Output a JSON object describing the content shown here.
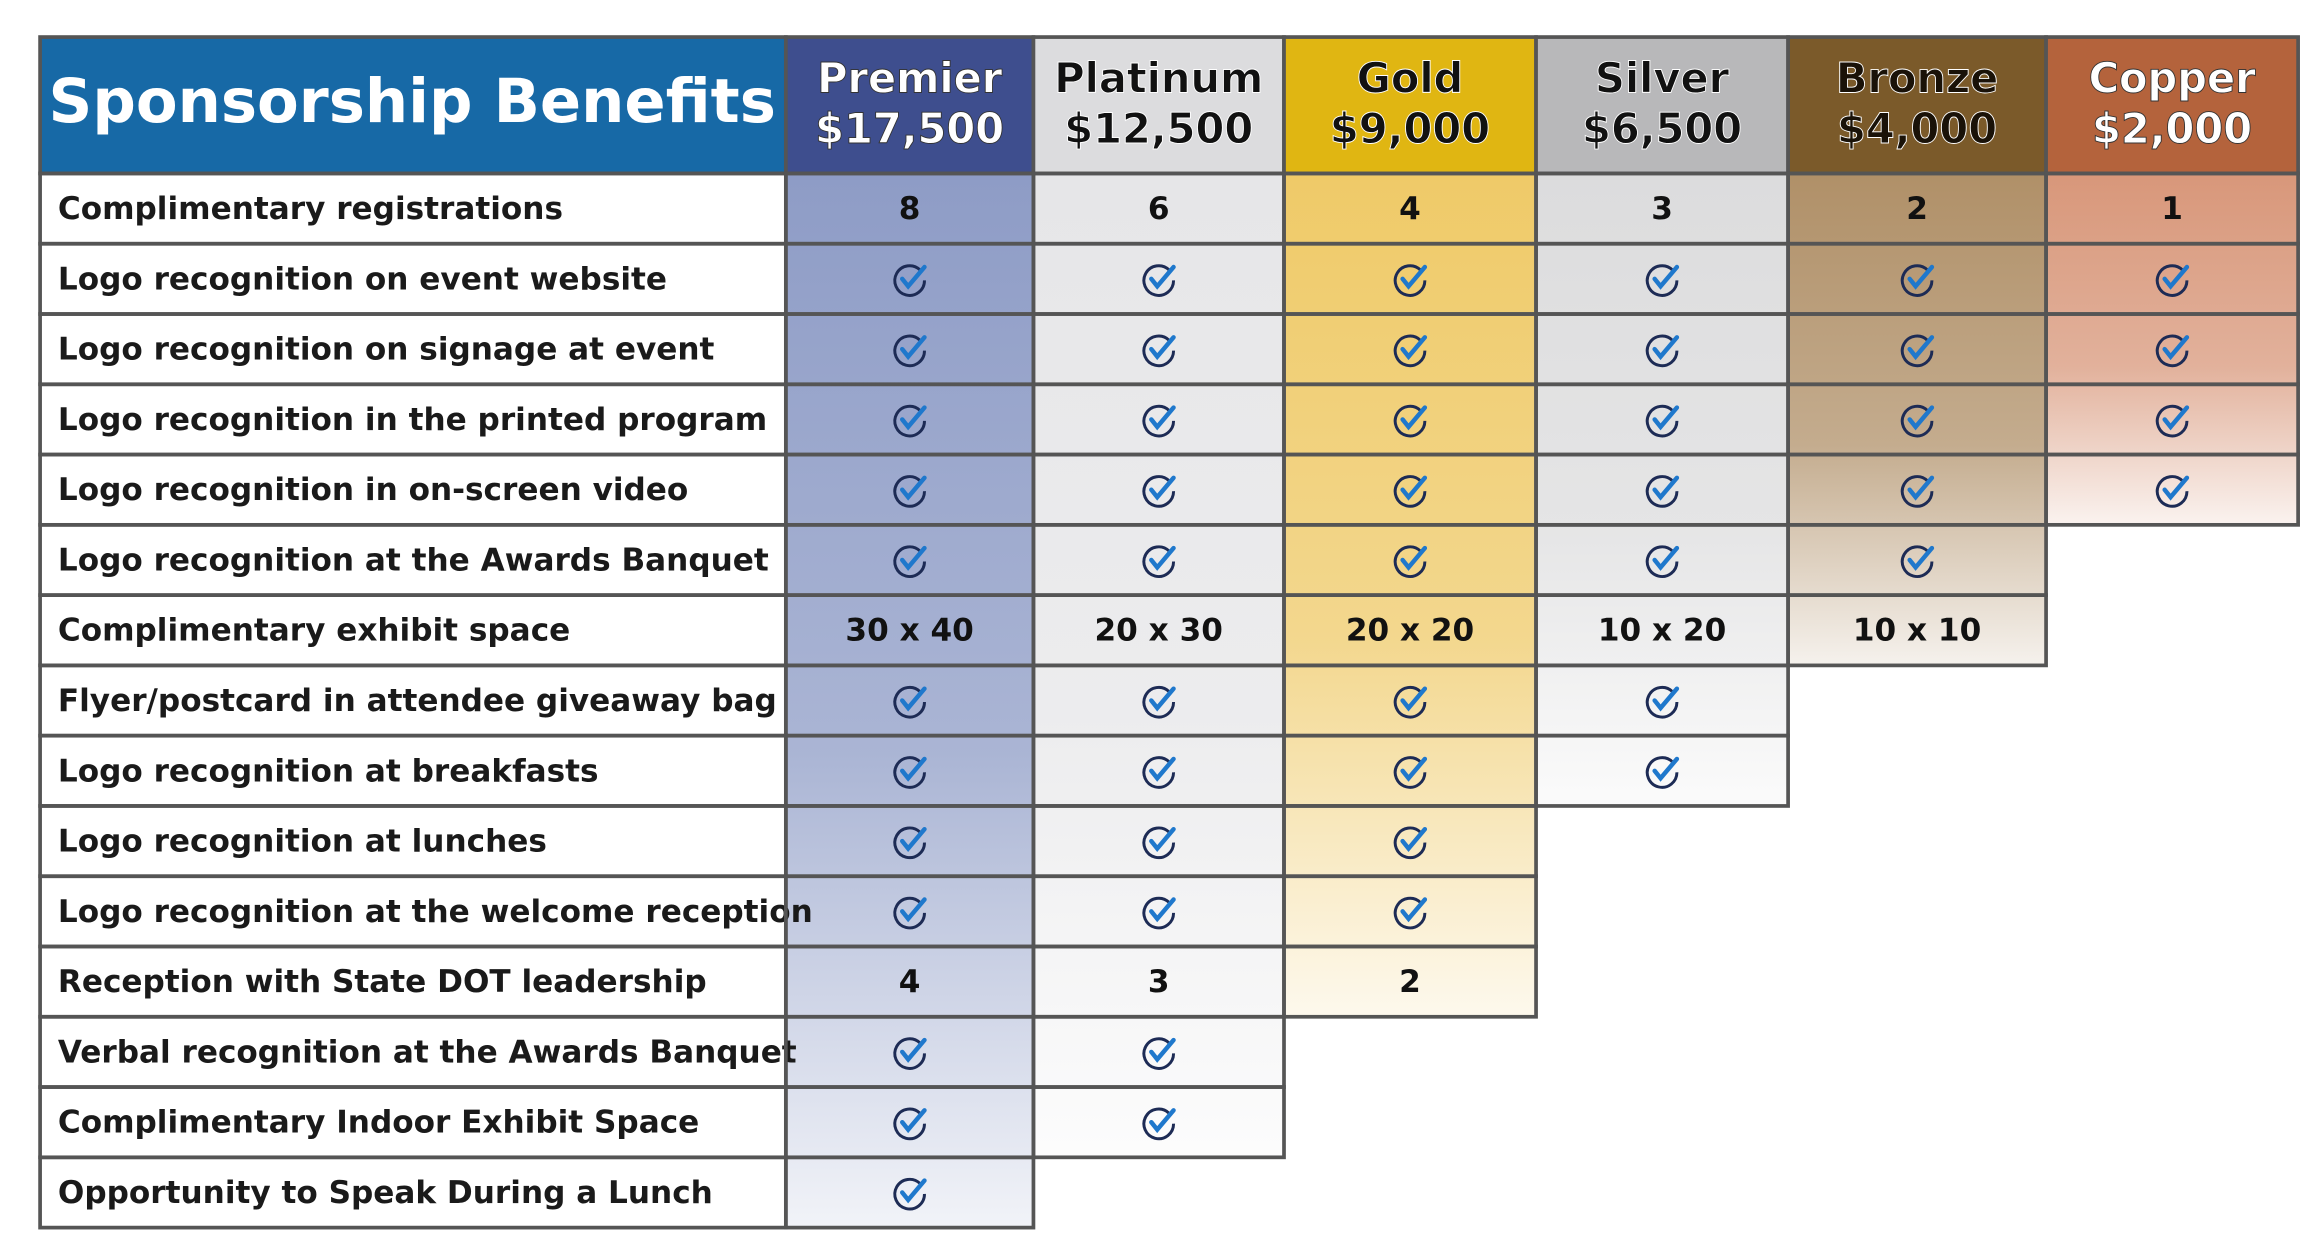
{
  "header": {
    "title": "Sponsorship Benefits"
  },
  "tiers": [
    {
      "name": "Premier",
      "price": "$17,500",
      "color": "#3e4e8e",
      "body_color": "#8e9cc6",
      "text_color": "#ffffff"
    },
    {
      "name": "Platinum",
      "price": "$12,500",
      "color": "#dcdcde",
      "body_color": "#e6e6e8",
      "text_color": "#111111"
    },
    {
      "name": "Gold",
      "price": "$9,000",
      "color": "#e0b612",
      "body_color": "#efca68",
      "text_color": "#111111"
    },
    {
      "name": "Silver",
      "price": "$6,500",
      "color": "#b8b8ba",
      "body_color": "#dcdcdd",
      "text_color": "#111111"
    },
    {
      "name": "Bronze",
      "price": "$4,000",
      "color": "#7b5a2a",
      "body_color": "#b09068",
      "text_color": "#1a1208"
    },
    {
      "name": "Copper",
      "price": "$2,000",
      "color": "#b4633c",
      "body_color": "#d8977a",
      "text_color": "#ffffff"
    }
  ],
  "rows": [
    {
      "label": "Complimentary registrations",
      "cells": [
        8,
        6,
        4,
        3,
        2,
        1
      ]
    },
    {
      "label": "Logo recognition on event website",
      "cells": [
        true,
        true,
        true,
        true,
        true,
        true
      ]
    },
    {
      "label": "Logo recognition on signage at event",
      "cells": [
        true,
        true,
        true,
        true,
        true,
        true
      ]
    },
    {
      "label": "Logo recognition in the printed program",
      "cells": [
        true,
        true,
        true,
        true,
        true,
        true
      ]
    },
    {
      "label": "Logo recognition in on-screen video",
      "cells": [
        true,
        true,
        true,
        true,
        true,
        true
      ]
    },
    {
      "label": "Logo recognition at the Awards Banquet",
      "cells": [
        true,
        true,
        true,
        true,
        true
      ]
    },
    {
      "label": "Complimentary exhibit space",
      "cells": [
        "30 x 40",
        "20 x 30",
        "20 x 20",
        "10 x 20",
        "10 x 10"
      ]
    },
    {
      "label": "Flyer/postcard in attendee giveaway bag",
      "cells": [
        true,
        true,
        true,
        true
      ]
    },
    {
      "label": "Logo recognition at breakfasts",
      "cells": [
        true,
        true,
        true,
        true
      ]
    },
    {
      "label": "Logo recognition at lunches",
      "cells": [
        true,
        true,
        true
      ]
    },
    {
      "label": "Logo recognition at the welcome reception",
      "cells": [
        true,
        true,
        true
      ]
    },
    {
      "label": "Reception with State DOT leadership",
      "cells": [
        4,
        3,
        2
      ]
    },
    {
      "label": "Verbal recognition at the Awards Banquet",
      "cells": [
        true,
        true
      ]
    },
    {
      "label": "Complimentary Indoor Exhibit Space",
      "cells": [
        true,
        true
      ]
    },
    {
      "label": "Opportunity to Speak During a Lunch",
      "cells": [
        true
      ]
    }
  ]
}
